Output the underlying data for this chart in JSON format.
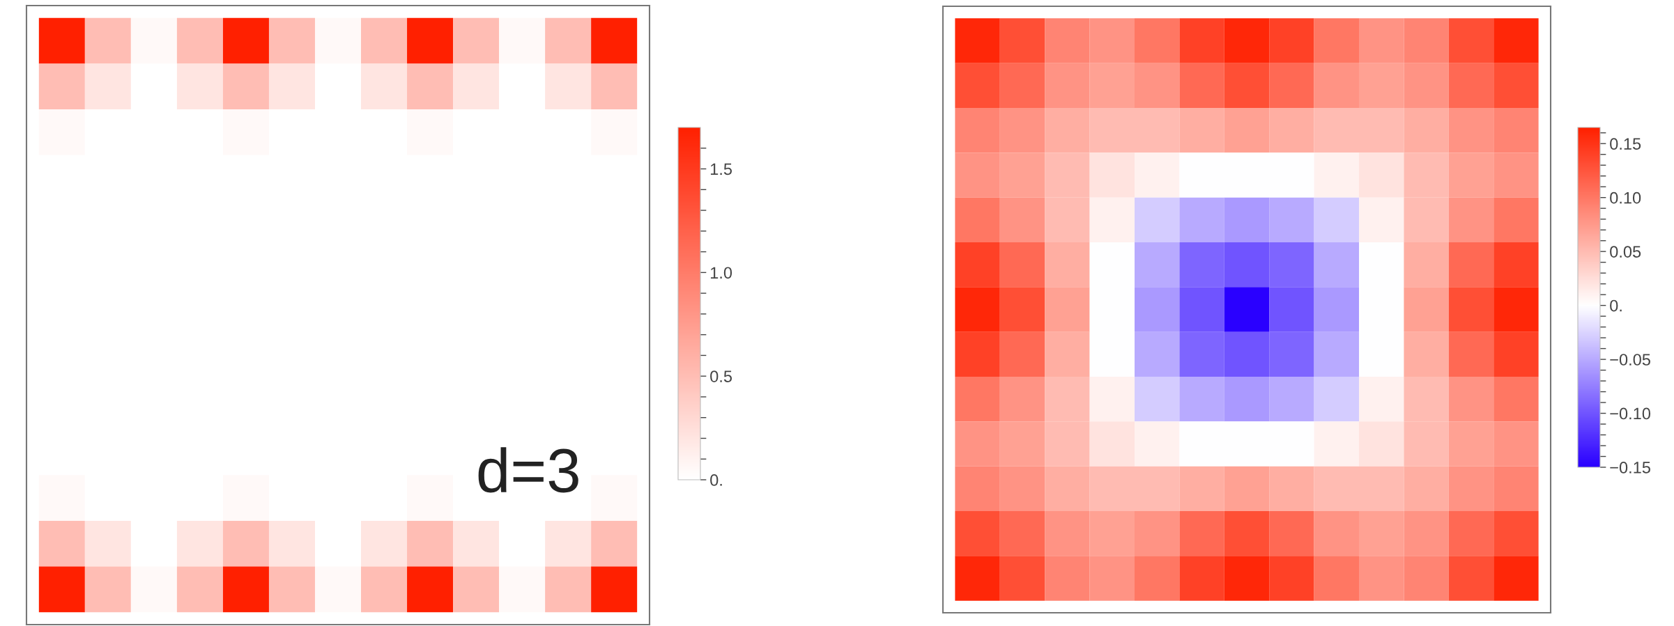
{
  "chart_data": [
    {
      "type": "heatmap",
      "annotations": [
        "d=3"
      ],
      "categories": [
        null,
        null,
        null,
        null,
        null,
        null,
        null,
        null,
        null,
        null,
        null,
        null,
        null
      ],
      "y_categories": [
        null,
        null,
        null,
        null,
        null,
        null,
        null,
        null,
        null,
        null,
        null,
        null,
        null
      ],
      "cells": [
        [
          1.7,
          0.5,
          0.05,
          0.5,
          1.7,
          0.5,
          0.05,
          0.5,
          1.7,
          0.5,
          0.05,
          0.5,
          1.7
        ],
        [
          0.5,
          0.2,
          0,
          0.2,
          0.5,
          0.2,
          0,
          0.2,
          0.5,
          0.2,
          0,
          0.2,
          0.5
        ],
        [
          0.05,
          0,
          0,
          0,
          0.05,
          0,
          0,
          0,
          0.05,
          0,
          0,
          0,
          0.05
        ],
        [
          0,
          0,
          0,
          0,
          0,
          0,
          0,
          0,
          0,
          0,
          0,
          0,
          0
        ],
        [
          0,
          0,
          0,
          0,
          0,
          0,
          0,
          0,
          0,
          0,
          0,
          0,
          0
        ],
        [
          0,
          0,
          0,
          0,
          0,
          0,
          0,
          0,
          0,
          0,
          0,
          0,
          0
        ],
        [
          0,
          0,
          0,
          0,
          0,
          0,
          0,
          0,
          0,
          0,
          0,
          0,
          0
        ],
        [
          0,
          0,
          0,
          0,
          0,
          0,
          0,
          0,
          0,
          0,
          0,
          0,
          0
        ],
        [
          0,
          0,
          0,
          0,
          0,
          0,
          0,
          0,
          0,
          0,
          0,
          0,
          0
        ],
        [
          0,
          0,
          0,
          0,
          0,
          0,
          0,
          0,
          0,
          0,
          0,
          0,
          0
        ],
        [
          0.05,
          0,
          0,
          0,
          0.05,
          0,
          0,
          0,
          0.05,
          0,
          0,
          0,
          0.05
        ],
        [
          0.5,
          0.2,
          0,
          0.2,
          0.5,
          0.2,
          0,
          0.2,
          0.5,
          0.2,
          0,
          0.2,
          0.5
        ],
        [
          1.7,
          0.5,
          0.05,
          0.5,
          1.7,
          0.5,
          0.05,
          0.5,
          1.7,
          0.5,
          0.05,
          0.5,
          1.7
        ]
      ],
      "clim": [
        0,
        1.7
      ],
      "cticks": [
        {
          "value": 0,
          "label": "0."
        },
        {
          "value": 0.1,
          "label": null
        },
        {
          "value": 0.2,
          "label": null
        },
        {
          "value": 0.3,
          "label": null
        },
        {
          "value": 0.4,
          "label": null
        },
        0.5,
        {
          "value": 0.6,
          "label": null
        },
        {
          "value": 0.7,
          "label": null
        },
        {
          "value": 0.8,
          "label": null
        },
        {
          "value": 0.9,
          "label": null
        },
        {
          "value": 1.0,
          "label": "1.0"
        },
        {
          "value": 1.1,
          "label": null
        },
        {
          "value": 1.2,
          "label": null
        },
        {
          "value": 1.3,
          "label": null
        },
        {
          "value": 1.4,
          "label": null
        },
        1.5,
        {
          "value": 1.6,
          "label": null
        }
      ]
    },
    {
      "type": "heatmap",
      "categories": [
        null,
        null,
        null,
        null,
        null,
        null,
        null,
        null,
        null,
        null,
        null,
        null,
        null
      ],
      "y_categories": [
        null,
        null,
        null,
        null,
        null,
        null,
        null,
        null,
        null,
        null,
        null,
        null,
        null
      ],
      "cells": [
        [
          0.16,
          0.13,
          0.09,
          0.08,
          0.1,
          0.14,
          0.16,
          0.14,
          0.1,
          0.08,
          0.09,
          0.13,
          0.16
        ],
        [
          0.13,
          0.11,
          0.08,
          0.07,
          0.08,
          0.11,
          0.13,
          0.11,
          0.08,
          0.07,
          0.08,
          0.11,
          0.13
        ],
        [
          0.09,
          0.08,
          0.06,
          0.05,
          0.05,
          0.06,
          0.07,
          0.06,
          0.05,
          0.05,
          0.06,
          0.08,
          0.09
        ],
        [
          0.08,
          0.07,
          0.05,
          0.02,
          0.01,
          0.0,
          0.0,
          0.0,
          0.01,
          0.02,
          0.05,
          0.07,
          0.08
        ],
        [
          0.1,
          0.08,
          0.05,
          0.01,
          -0.03,
          -0.05,
          -0.06,
          -0.05,
          -0.03,
          0.01,
          0.05,
          0.08,
          0.1
        ],
        [
          0.14,
          0.11,
          0.06,
          0.0,
          -0.05,
          -0.09,
          -0.1,
          -0.09,
          -0.05,
          0.0,
          0.06,
          0.11,
          0.14
        ],
        [
          0.16,
          0.13,
          0.07,
          0.0,
          -0.06,
          -0.1,
          -0.15,
          -0.1,
          -0.06,
          0.0,
          0.07,
          0.13,
          0.16
        ],
        [
          0.14,
          0.11,
          0.06,
          0.0,
          -0.05,
          -0.09,
          -0.1,
          -0.09,
          -0.05,
          0.0,
          0.06,
          0.11,
          0.14
        ],
        [
          0.1,
          0.08,
          0.05,
          0.01,
          -0.03,
          -0.05,
          -0.06,
          -0.05,
          -0.03,
          0.01,
          0.05,
          0.08,
          0.1
        ],
        [
          0.08,
          0.07,
          0.05,
          0.02,
          0.01,
          0.0,
          0.0,
          0.0,
          0.01,
          0.02,
          0.05,
          0.07,
          0.08
        ],
        [
          0.09,
          0.08,
          0.06,
          0.05,
          0.05,
          0.06,
          0.07,
          0.06,
          0.05,
          0.05,
          0.06,
          0.08,
          0.09
        ],
        [
          0.13,
          0.11,
          0.08,
          0.07,
          0.08,
          0.11,
          0.13,
          0.11,
          0.08,
          0.07,
          0.08,
          0.11,
          0.13
        ],
        [
          0.16,
          0.13,
          0.09,
          0.08,
          0.1,
          0.14,
          0.16,
          0.14,
          0.1,
          0.08,
          0.09,
          0.13,
          0.16
        ]
      ],
      "clim": [
        -0.15,
        0.165
      ],
      "cticks": [
        {
          "value": -0.15,
          "label": "−0.15"
        },
        {
          "value": -0.14,
          "label": null
        },
        {
          "value": -0.13,
          "label": null
        },
        {
          "value": -0.12,
          "label": null
        },
        {
          "value": -0.11,
          "label": null
        },
        {
          "value": -0.1,
          "label": "−0.10"
        },
        {
          "value": -0.09,
          "label": null
        },
        {
          "value": -0.08,
          "label": null
        },
        {
          "value": -0.07,
          "label": null
        },
        {
          "value": -0.06,
          "label": null
        },
        {
          "value": -0.05,
          "label": "−0.05"
        },
        {
          "value": -0.04,
          "label": null
        },
        {
          "value": -0.03,
          "label": null
        },
        {
          "value": -0.02,
          "label": null
        },
        {
          "value": -0.01,
          "label": null
        },
        {
          "value": 0,
          "label": "0."
        },
        {
          "value": 0.01,
          "label": null
        },
        {
          "value": 0.02,
          "label": null
        },
        {
          "value": 0.03,
          "label": null
        },
        {
          "value": 0.04,
          "label": null
        },
        {
          "value": 0.05,
          "label": "0.05"
        },
        {
          "value": 0.06,
          "label": null
        },
        {
          "value": 0.07,
          "label": null
        },
        {
          "value": 0.08,
          "label": null
        },
        {
          "value": 0.09,
          "label": null
        },
        {
          "value": 0.1,
          "label": "0.10"
        },
        {
          "value": 0.11,
          "label": null
        },
        {
          "value": 0.12,
          "label": null
        },
        {
          "value": 0.13,
          "label": null
        },
        {
          "value": 0.14,
          "label": null
        },
        {
          "value": 0.15,
          "label": "0.15"
        },
        {
          "value": 0.16,
          "label": null
        }
      ]
    }
  ]
}
